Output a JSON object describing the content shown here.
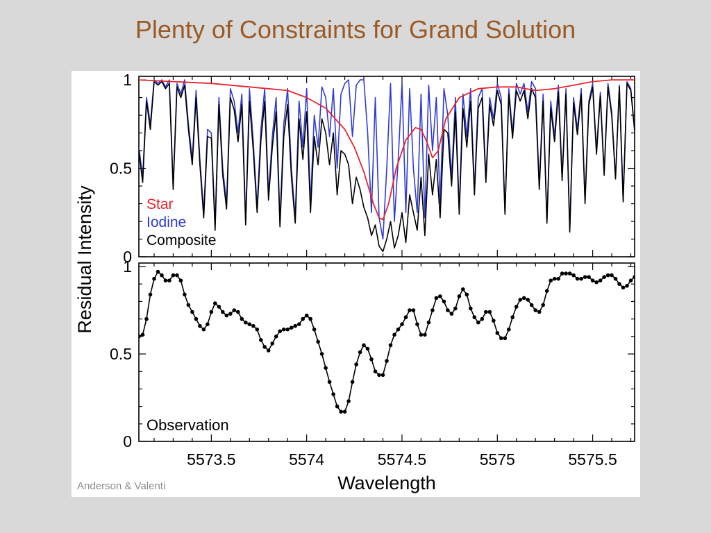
{
  "slide": {
    "title": "Plenty of Constraints for Grand Solution",
    "credit": "Anderson & Valenti",
    "accent_color": "#9a5a26"
  },
  "chart_data": [
    {
      "type": "line",
      "ylabel": "Residual Intensity",
      "xlim": [
        5573.12,
        5575.72
      ],
      "ylim": [
        0,
        1.02
      ],
      "x_ticks": [
        5573.5,
        5574,
        5574.5,
        5575,
        5575.5
      ],
      "y_ticks": [
        0,
        0.5,
        1
      ],
      "y_tick_labels": [
        "0",
        "0.5",
        "1"
      ],
      "legend_position": "bottom-left",
      "series": [
        {
          "name": "Star",
          "color": "#e8242c",
          "x": [
            5573.12,
            5573.3,
            5573.5,
            5573.7,
            5573.9,
            5574.0,
            5574.1,
            5574.2,
            5574.25,
            5574.3,
            5574.35,
            5574.38,
            5574.4,
            5574.43,
            5574.47,
            5574.52,
            5574.57,
            5574.6,
            5574.63,
            5574.66,
            5574.69,
            5574.73,
            5574.8,
            5574.9,
            5575.0,
            5575.1,
            5575.2,
            5575.3,
            5575.4,
            5575.5,
            5575.6,
            5575.72
          ],
          "y": [
            1.0,
            0.99,
            0.98,
            0.96,
            0.94,
            0.9,
            0.84,
            0.72,
            0.62,
            0.48,
            0.3,
            0.22,
            0.21,
            0.3,
            0.5,
            0.66,
            0.73,
            0.72,
            0.65,
            0.56,
            0.6,
            0.78,
            0.9,
            0.95,
            0.96,
            0.96,
            0.94,
            0.95,
            0.97,
            0.99,
            1.0,
            1.0
          ]
        },
        {
          "name": "Iodine",
          "color": "#2f3bd4",
          "x": [
            5573.12,
            5573.14,
            5573.16,
            5573.18,
            5573.2,
            5573.22,
            5573.24,
            5573.26,
            5573.28,
            5573.3,
            5573.32,
            5573.34,
            5573.36,
            5573.38,
            5573.4,
            5573.42,
            5573.44,
            5573.46,
            5573.48,
            5573.5,
            5573.52,
            5573.54,
            5573.56,
            5573.58,
            5573.6,
            5573.62,
            5573.64,
            5573.66,
            5573.68,
            5573.7,
            5573.72,
            5573.74,
            5573.76,
            5573.78,
            5573.8,
            5573.82,
            5573.84,
            5573.86,
            5573.88,
            5573.9,
            5573.92,
            5573.94,
            5573.96,
            5573.98,
            5574.0,
            5574.02,
            5574.04,
            5574.06,
            5574.08,
            5574.1,
            5574.12,
            5574.14,
            5574.16,
            5574.18,
            5574.2,
            5574.22,
            5574.24,
            5574.26,
            5574.28,
            5574.3,
            5574.32,
            5574.34,
            5574.36,
            5574.38,
            5574.4,
            5574.42,
            5574.44,
            5574.46,
            5574.48,
            5574.5,
            5574.52,
            5574.54,
            5574.56,
            5574.58,
            5574.6,
            5574.62,
            5574.64,
            5574.66,
            5574.68,
            5574.7,
            5574.72,
            5574.74,
            5574.76,
            5574.78,
            5574.8,
            5574.82,
            5574.84,
            5574.86,
            5574.88,
            5574.9,
            5574.92,
            5574.94,
            5574.96,
            5574.98,
            5575.0,
            5575.02,
            5575.04,
            5575.06,
            5575.08,
            5575.1,
            5575.12,
            5575.14,
            5575.16,
            5575.18,
            5575.2,
            5575.22,
            5575.24,
            5575.26,
            5575.28,
            5575.3,
            5575.32,
            5575.34,
            5575.36,
            5575.38,
            5575.4,
            5575.42,
            5575.44,
            5575.46,
            5575.48,
            5575.5,
            5575.52,
            5575.54,
            5575.56,
            5575.58,
            5575.6,
            5575.62,
            5575.64,
            5575.66,
            5575.68,
            5575.7,
            5575.72
          ],
          "y": [
            0.62,
            0.45,
            0.9,
            0.75,
            1.0,
            0.98,
            1.0,
            0.96,
            1.0,
            0.4,
            0.98,
            0.92,
            1.0,
            0.75,
            0.55,
            0.94,
            0.55,
            0.25,
            0.72,
            0.7,
            0.18,
            0.9,
            0.5,
            0.3,
            0.95,
            0.88,
            0.7,
            0.92,
            0.2,
            0.95,
            0.65,
            0.28,
            0.72,
            0.95,
            0.35,
            0.68,
            0.9,
            0.2,
            0.75,
            0.95,
            0.5,
            0.22,
            0.88,
            0.62,
            0.95,
            0.3,
            0.8,
            0.62,
            0.96,
            0.9,
            0.68,
            0.95,
            0.5,
            0.92,
            0.98,
            1.0,
            0.68,
            0.97,
            1.0,
            1.0,
            0.7,
            0.25,
            0.9,
            0.22,
            0.1,
            0.5,
            0.98,
            0.2,
            0.55,
            0.98,
            0.25,
            0.95,
            0.5,
            0.25,
            0.92,
            0.22,
            0.97,
            0.6,
            0.9,
            0.3,
            0.95,
            0.8,
            0.45,
            0.9,
            0.26,
            0.92,
            0.68,
            0.95,
            0.38,
            0.9,
            0.95,
            0.45,
            0.9,
            0.78,
            0.98,
            0.9,
            0.25,
            0.95,
            0.7,
            0.98,
            0.92,
            0.98,
            0.82,
            0.99,
            0.95,
            0.4,
            0.92,
            0.2,
            0.88,
            0.68,
            0.97,
            0.45,
            0.95,
            0.15,
            0.9,
            0.72,
            0.95,
            0.32,
            0.88,
            0.98,
            0.6,
            0.93,
            0.48,
            0.98,
            0.82,
            0.45,
            0.97,
            0.32,
            0.99,
            0.95,
            0.72
          ],
          "note_shape": "iodine forest with deep narrow lines across the whole window"
        },
        {
          "name": "Composite",
          "color": "#000000",
          "x": [
            5573.12,
            5573.14,
            5573.16,
            5573.18,
            5573.2,
            5573.22,
            5573.24,
            5573.26,
            5573.28,
            5573.3,
            5573.32,
            5573.34,
            5573.36,
            5573.38,
            5573.4,
            5573.42,
            5573.44,
            5573.46,
            5573.48,
            5573.5,
            5573.52,
            5573.54,
            5573.56,
            5573.58,
            5573.6,
            5573.62,
            5573.64,
            5573.66,
            5573.68,
            5573.7,
            5573.72,
            5573.74,
            5573.76,
            5573.78,
            5573.8,
            5573.82,
            5573.84,
            5573.86,
            5573.88,
            5573.9,
            5573.92,
            5573.94,
            5573.96,
            5573.98,
            5574.0,
            5574.02,
            5574.04,
            5574.06,
            5574.08,
            5574.1,
            5574.12,
            5574.14,
            5574.16,
            5574.18,
            5574.2,
            5574.22,
            5574.24,
            5574.26,
            5574.28,
            5574.3,
            5574.32,
            5574.34,
            5574.36,
            5574.38,
            5574.4,
            5574.42,
            5574.44,
            5574.46,
            5574.48,
            5574.5,
            5574.52,
            5574.54,
            5574.56,
            5574.58,
            5574.6,
            5574.62,
            5574.64,
            5574.66,
            5574.68,
            5574.7,
            5574.72,
            5574.74,
            5574.76,
            5574.78,
            5574.8,
            5574.82,
            5574.84,
            5574.86,
            5574.88,
            5574.9,
            5574.92,
            5574.94,
            5574.96,
            5574.98,
            5575.0,
            5575.02,
            5575.04,
            5575.06,
            5575.08,
            5575.1,
            5575.12,
            5575.14,
            5575.16,
            5575.18,
            5575.2,
            5575.22,
            5575.24,
            5575.26,
            5575.28,
            5575.3,
            5575.32,
            5575.34,
            5575.36,
            5575.38,
            5575.4,
            5575.42,
            5575.44,
            5575.46,
            5575.48,
            5575.5,
            5575.52,
            5575.54,
            5575.56,
            5575.58,
            5575.6,
            5575.62,
            5575.64,
            5575.66,
            5575.68,
            5575.7,
            5575.72
          ],
          "y": [
            0.6,
            0.42,
            0.88,
            0.72,
            0.99,
            0.97,
            0.99,
            0.95,
            0.98,
            0.38,
            0.96,
            0.9,
            0.97,
            0.72,
            0.52,
            0.9,
            0.52,
            0.22,
            0.68,
            0.67,
            0.15,
            0.86,
            0.46,
            0.27,
            0.9,
            0.83,
            0.65,
            0.86,
            0.18,
            0.88,
            0.6,
            0.25,
            0.66,
            0.88,
            0.32,
            0.62,
            0.82,
            0.17,
            0.68,
            0.86,
            0.45,
            0.19,
            0.78,
            0.55,
            0.82,
            0.25,
            0.68,
            0.52,
            0.78,
            0.7,
            0.52,
            0.7,
            0.35,
            0.6,
            0.58,
            0.52,
            0.3,
            0.45,
            0.38,
            0.28,
            0.22,
            0.12,
            0.18,
            0.06,
            0.03,
            0.1,
            0.2,
            0.05,
            0.12,
            0.25,
            0.08,
            0.35,
            0.25,
            0.15,
            0.45,
            0.12,
            0.58,
            0.35,
            0.55,
            0.22,
            0.72,
            0.7,
            0.4,
            0.82,
            0.24,
            0.84,
            0.62,
            0.88,
            0.35,
            0.84,
            0.9,
            0.42,
            0.86,
            0.74,
            0.94,
            0.86,
            0.24,
            0.92,
            0.67,
            0.94,
            0.88,
            0.94,
            0.78,
            0.95,
            0.9,
            0.38,
            0.88,
            0.19,
            0.84,
            0.65,
            0.93,
            0.43,
            0.92,
            0.14,
            0.87,
            0.69,
            0.92,
            0.3,
            0.86,
            0.96,
            0.58,
            0.91,
            0.46,
            0.96,
            0.8,
            0.44,
            0.96,
            0.31,
            0.98,
            0.94,
            0.71
          ]
        }
      ],
      "legend": [
        "Star",
        "Iodine",
        "Composite"
      ]
    },
    {
      "type": "line",
      "xlabel": "Wavelength",
      "xlim": [
        5573.12,
        5575.72
      ],
      "ylim": [
        0,
        1.02
      ],
      "x_ticks": [
        5573.5,
        5574,
        5574.5,
        5575,
        5575.5
      ],
      "x_tick_labels": [
        "5573.5",
        "5574",
        "5574.5",
        "5575",
        "5575.5"
      ],
      "y_ticks": [
        0,
        0.5,
        1
      ],
      "y_tick_labels": [
        "0",
        "0.5",
        "1"
      ],
      "annotation": "Observation",
      "series": [
        {
          "color": "#000000",
          "markers": true,
          "x": [
            5573.12,
            5573.14,
            5573.16,
            5573.18,
            5573.2,
            5573.22,
            5573.24,
            5573.26,
            5573.28,
            5573.3,
            5573.32,
            5573.34,
            5573.36,
            5573.38,
            5573.4,
            5573.42,
            5573.44,
            5573.46,
            5573.48,
            5573.5,
            5573.52,
            5573.54,
            5573.56,
            5573.58,
            5573.6,
            5573.62,
            5573.64,
            5573.66,
            5573.68,
            5573.7,
            5573.72,
            5573.74,
            5573.76,
            5573.78,
            5573.8,
            5573.82,
            5573.84,
            5573.86,
            5573.88,
            5573.9,
            5573.92,
            5573.94,
            5573.96,
            5573.98,
            5574.0,
            5574.02,
            5574.04,
            5574.06,
            5574.08,
            5574.1,
            5574.12,
            5574.14,
            5574.16,
            5574.18,
            5574.2,
            5574.22,
            5574.24,
            5574.26,
            5574.28,
            5574.3,
            5574.32,
            5574.34,
            5574.36,
            5574.38,
            5574.4,
            5574.42,
            5574.44,
            5574.46,
            5574.48,
            5574.5,
            5574.52,
            5574.54,
            5574.56,
            5574.58,
            5574.6,
            5574.62,
            5574.64,
            5574.66,
            5574.68,
            5574.7,
            5574.72,
            5574.74,
            5574.76,
            5574.78,
            5574.8,
            5574.82,
            5574.84,
            5574.86,
            5574.88,
            5574.9,
            5574.92,
            5574.94,
            5574.96,
            5574.98,
            5575.0,
            5575.02,
            5575.04,
            5575.06,
            5575.08,
            5575.1,
            5575.12,
            5575.14,
            5575.16,
            5575.18,
            5575.2,
            5575.22,
            5575.24,
            5575.26,
            5575.28,
            5575.3,
            5575.32,
            5575.34,
            5575.36,
            5575.38,
            5575.4,
            5575.42,
            5575.44,
            5575.46,
            5575.48,
            5575.5,
            5575.52,
            5575.54,
            5575.56,
            5575.58,
            5575.6,
            5575.62,
            5575.64,
            5575.66,
            5575.68,
            5575.7,
            5575.72
          ],
          "y": [
            0.6,
            0.61,
            0.7,
            0.84,
            0.93,
            0.97,
            0.95,
            0.92,
            0.92,
            0.95,
            0.95,
            0.92,
            0.84,
            0.78,
            0.74,
            0.7,
            0.66,
            0.64,
            0.67,
            0.74,
            0.79,
            0.77,
            0.74,
            0.72,
            0.73,
            0.75,
            0.74,
            0.7,
            0.68,
            0.67,
            0.66,
            0.64,
            0.58,
            0.54,
            0.52,
            0.56,
            0.6,
            0.63,
            0.64,
            0.64,
            0.65,
            0.66,
            0.67,
            0.7,
            0.72,
            0.7,
            0.64,
            0.57,
            0.5,
            0.42,
            0.34,
            0.27,
            0.2,
            0.17,
            0.17,
            0.23,
            0.34,
            0.44,
            0.51,
            0.55,
            0.53,
            0.47,
            0.4,
            0.38,
            0.38,
            0.46,
            0.55,
            0.61,
            0.64,
            0.67,
            0.71,
            0.75,
            0.75,
            0.67,
            0.61,
            0.61,
            0.68,
            0.75,
            0.82,
            0.83,
            0.8,
            0.75,
            0.73,
            0.76,
            0.83,
            0.87,
            0.84,
            0.76,
            0.71,
            0.68,
            0.7,
            0.74,
            0.74,
            0.69,
            0.62,
            0.59,
            0.59,
            0.64,
            0.71,
            0.77,
            0.81,
            0.82,
            0.81,
            0.78,
            0.75,
            0.74,
            0.78,
            0.86,
            0.92,
            0.93,
            0.93,
            0.96,
            0.96,
            0.96,
            0.95,
            0.93,
            0.93,
            0.94,
            0.94,
            0.92,
            0.91,
            0.92,
            0.94,
            0.95,
            0.95,
            0.93,
            0.9,
            0.88,
            0.89,
            0.92,
            0.94
          ]
        }
      ]
    }
  ]
}
